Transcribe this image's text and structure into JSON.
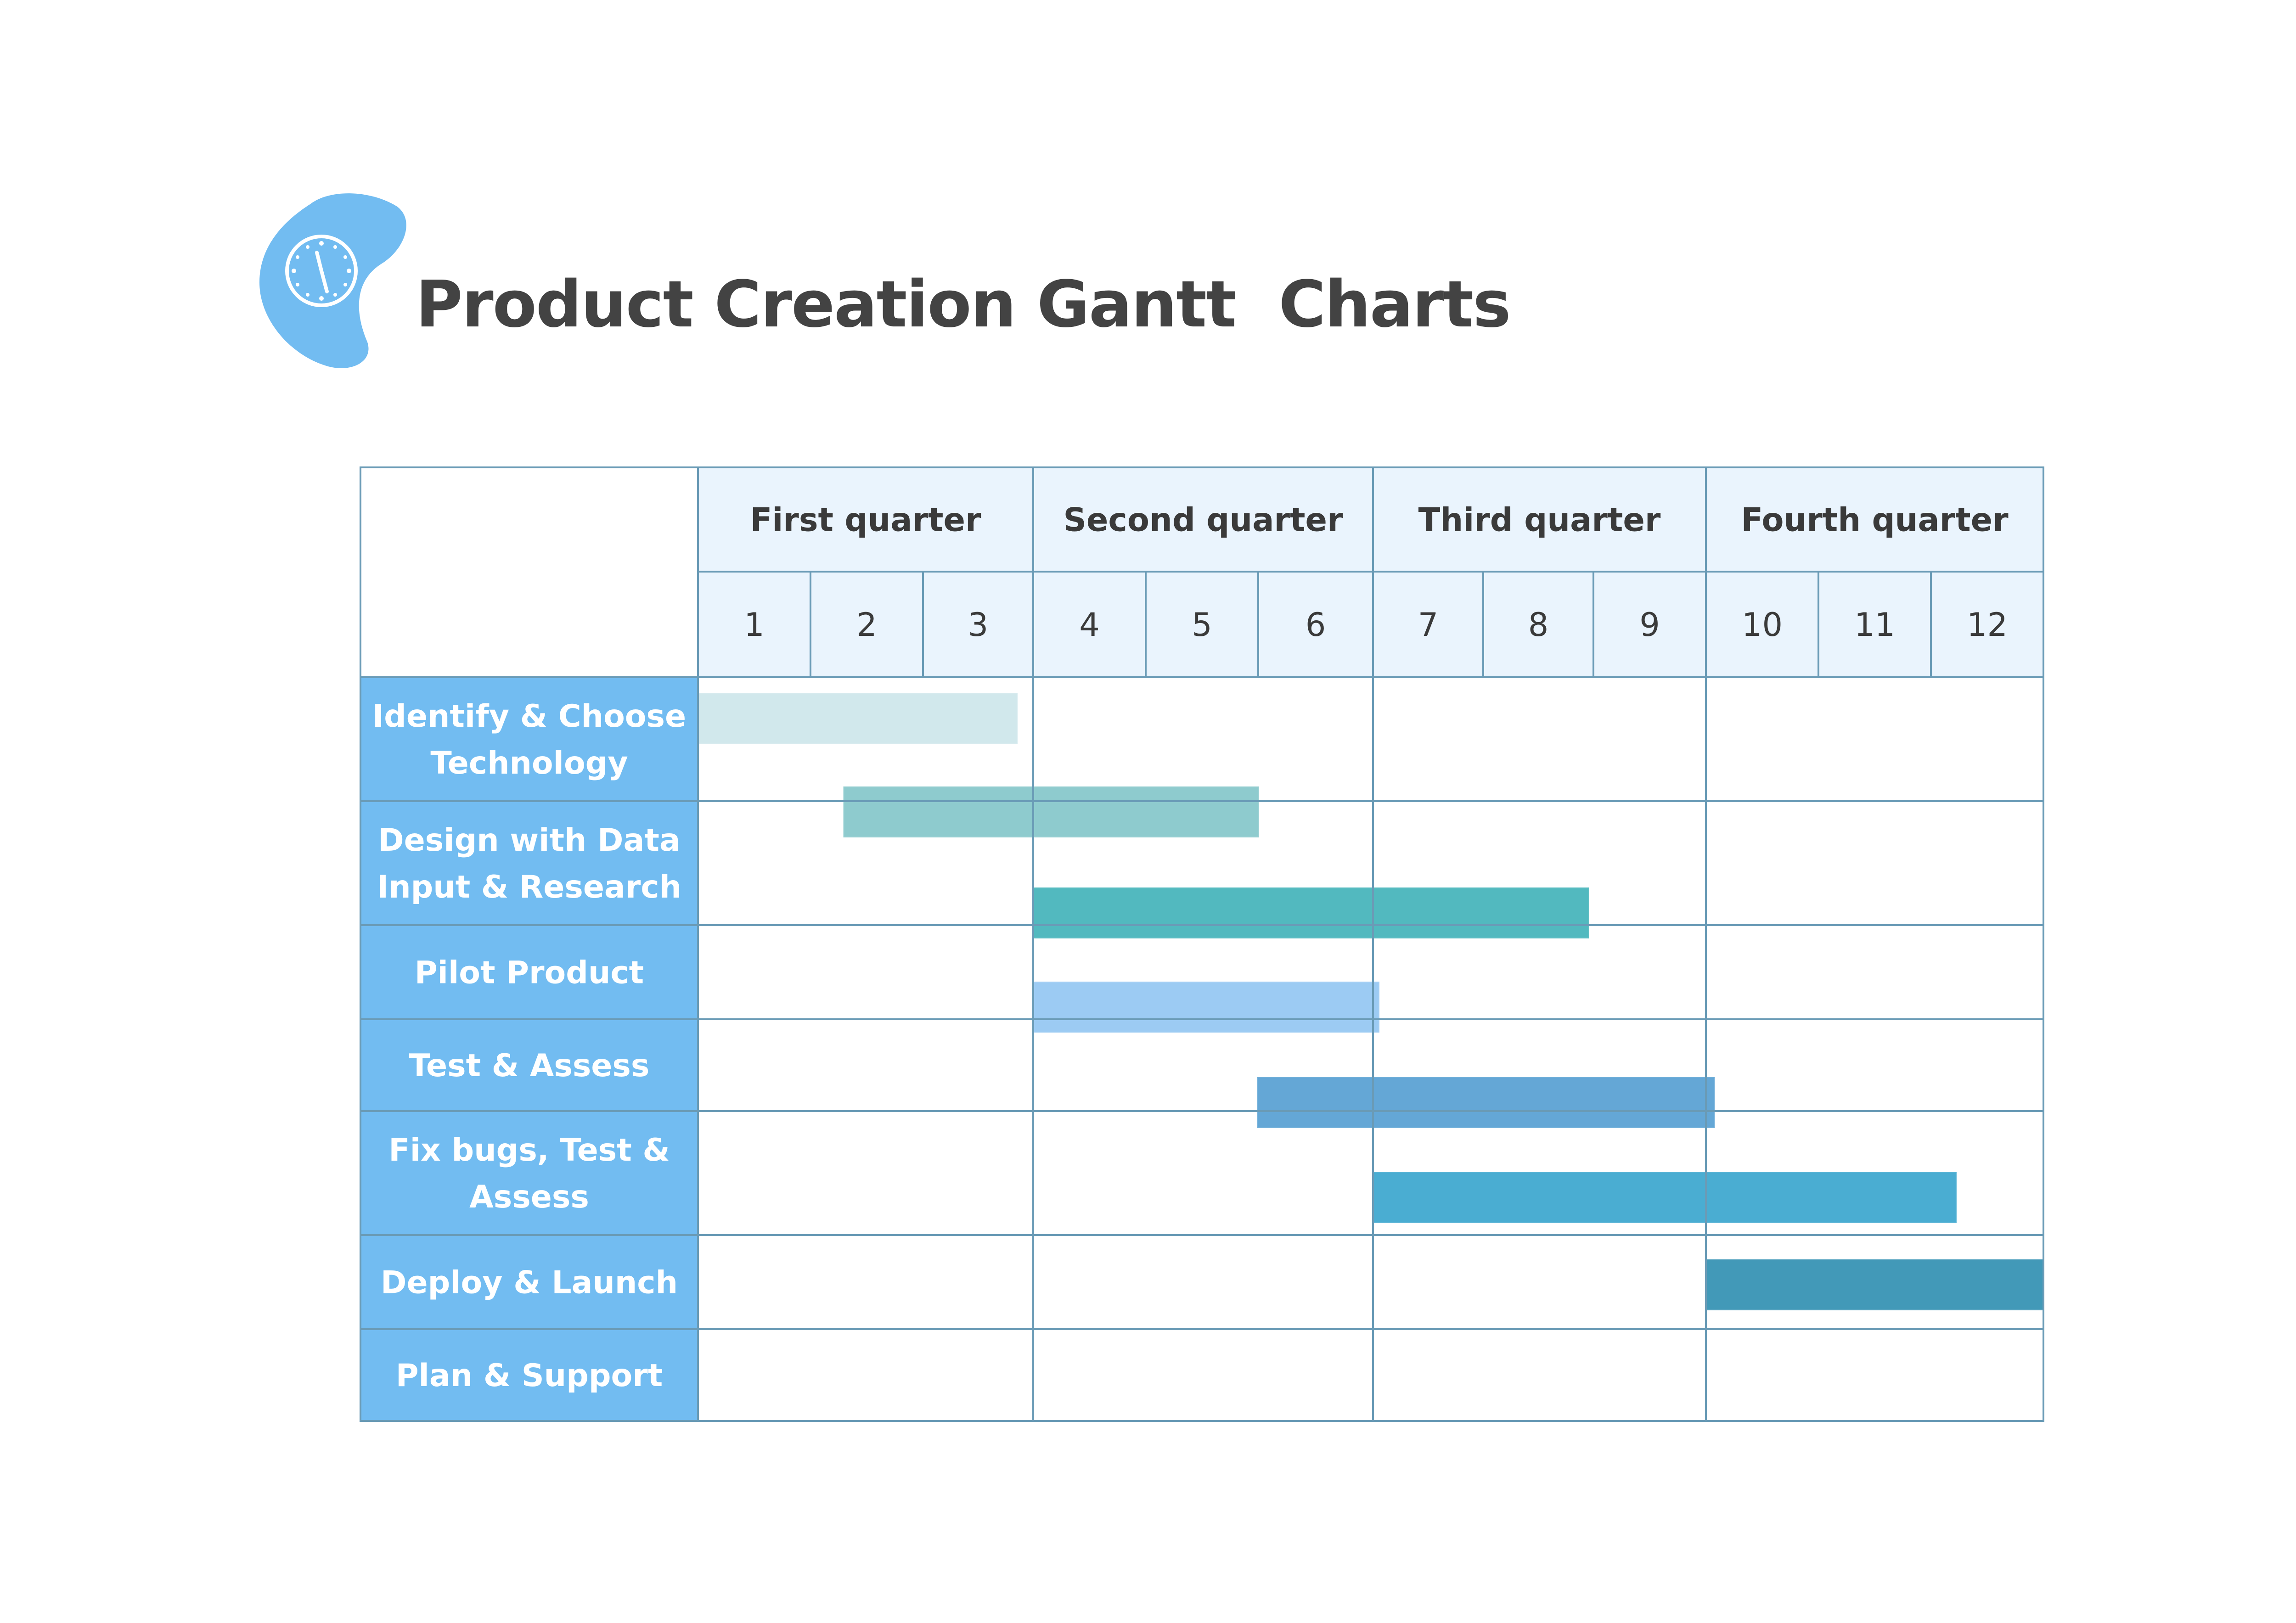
{
  "title": "Product Creation Gantt  Charts",
  "icons": {
    "logo": "clock-icon"
  },
  "colors": {
    "task_label_bg": "#72bcf1",
    "header_bg": "#eaf4fd",
    "grid_line": "#6a9bb6",
    "title_text": "#434343",
    "logo_blob": "#72bcf1"
  },
  "chart_data": {
    "type": "gantt",
    "quarters": [
      "First quarter",
      "Second quarter",
      "Third quarter",
      "Fourth quarter"
    ],
    "months": [
      "1",
      "2",
      "3",
      "4",
      "5",
      "6",
      "7",
      "8",
      "9",
      "10",
      "11",
      "12"
    ],
    "tasks": [
      {
        "label": [
          "Identify & Choose",
          "Technology"
        ]
      },
      {
        "label": [
          "Design with Data",
          "Input & Research"
        ]
      },
      {
        "label": [
          "Pilot Product"
        ]
      },
      {
        "label": [
          "Test & Assess"
        ]
      },
      {
        "label": [
          "Fix bugs, Test &",
          "Assess"
        ]
      },
      {
        "label": [
          "Deploy & Launch"
        ]
      },
      {
        "label": [
          "Plan & Support"
        ]
      }
    ],
    "bars": [
      {
        "start_month": 0.0,
        "end_month": 2.85,
        "color": "#d1e8ec"
      },
      {
        "start_month": 1.3,
        "end_month": 5.0,
        "color": "#8ecbce"
      },
      {
        "start_month": 3.0,
        "end_month": 7.95,
        "color": "#52b9bf"
      },
      {
        "start_month": 3.0,
        "end_month": 6.05,
        "color": "#9ccbf3"
      },
      {
        "start_month": 5.0,
        "end_month": 9.07,
        "color": "#64a7d6"
      },
      {
        "start_month": 6.0,
        "end_month": 11.22,
        "color": "#4aadd2"
      },
      {
        "start_month": 9.0,
        "end_month": 12.0,
        "color": "#4299b8"
      }
    ]
  }
}
